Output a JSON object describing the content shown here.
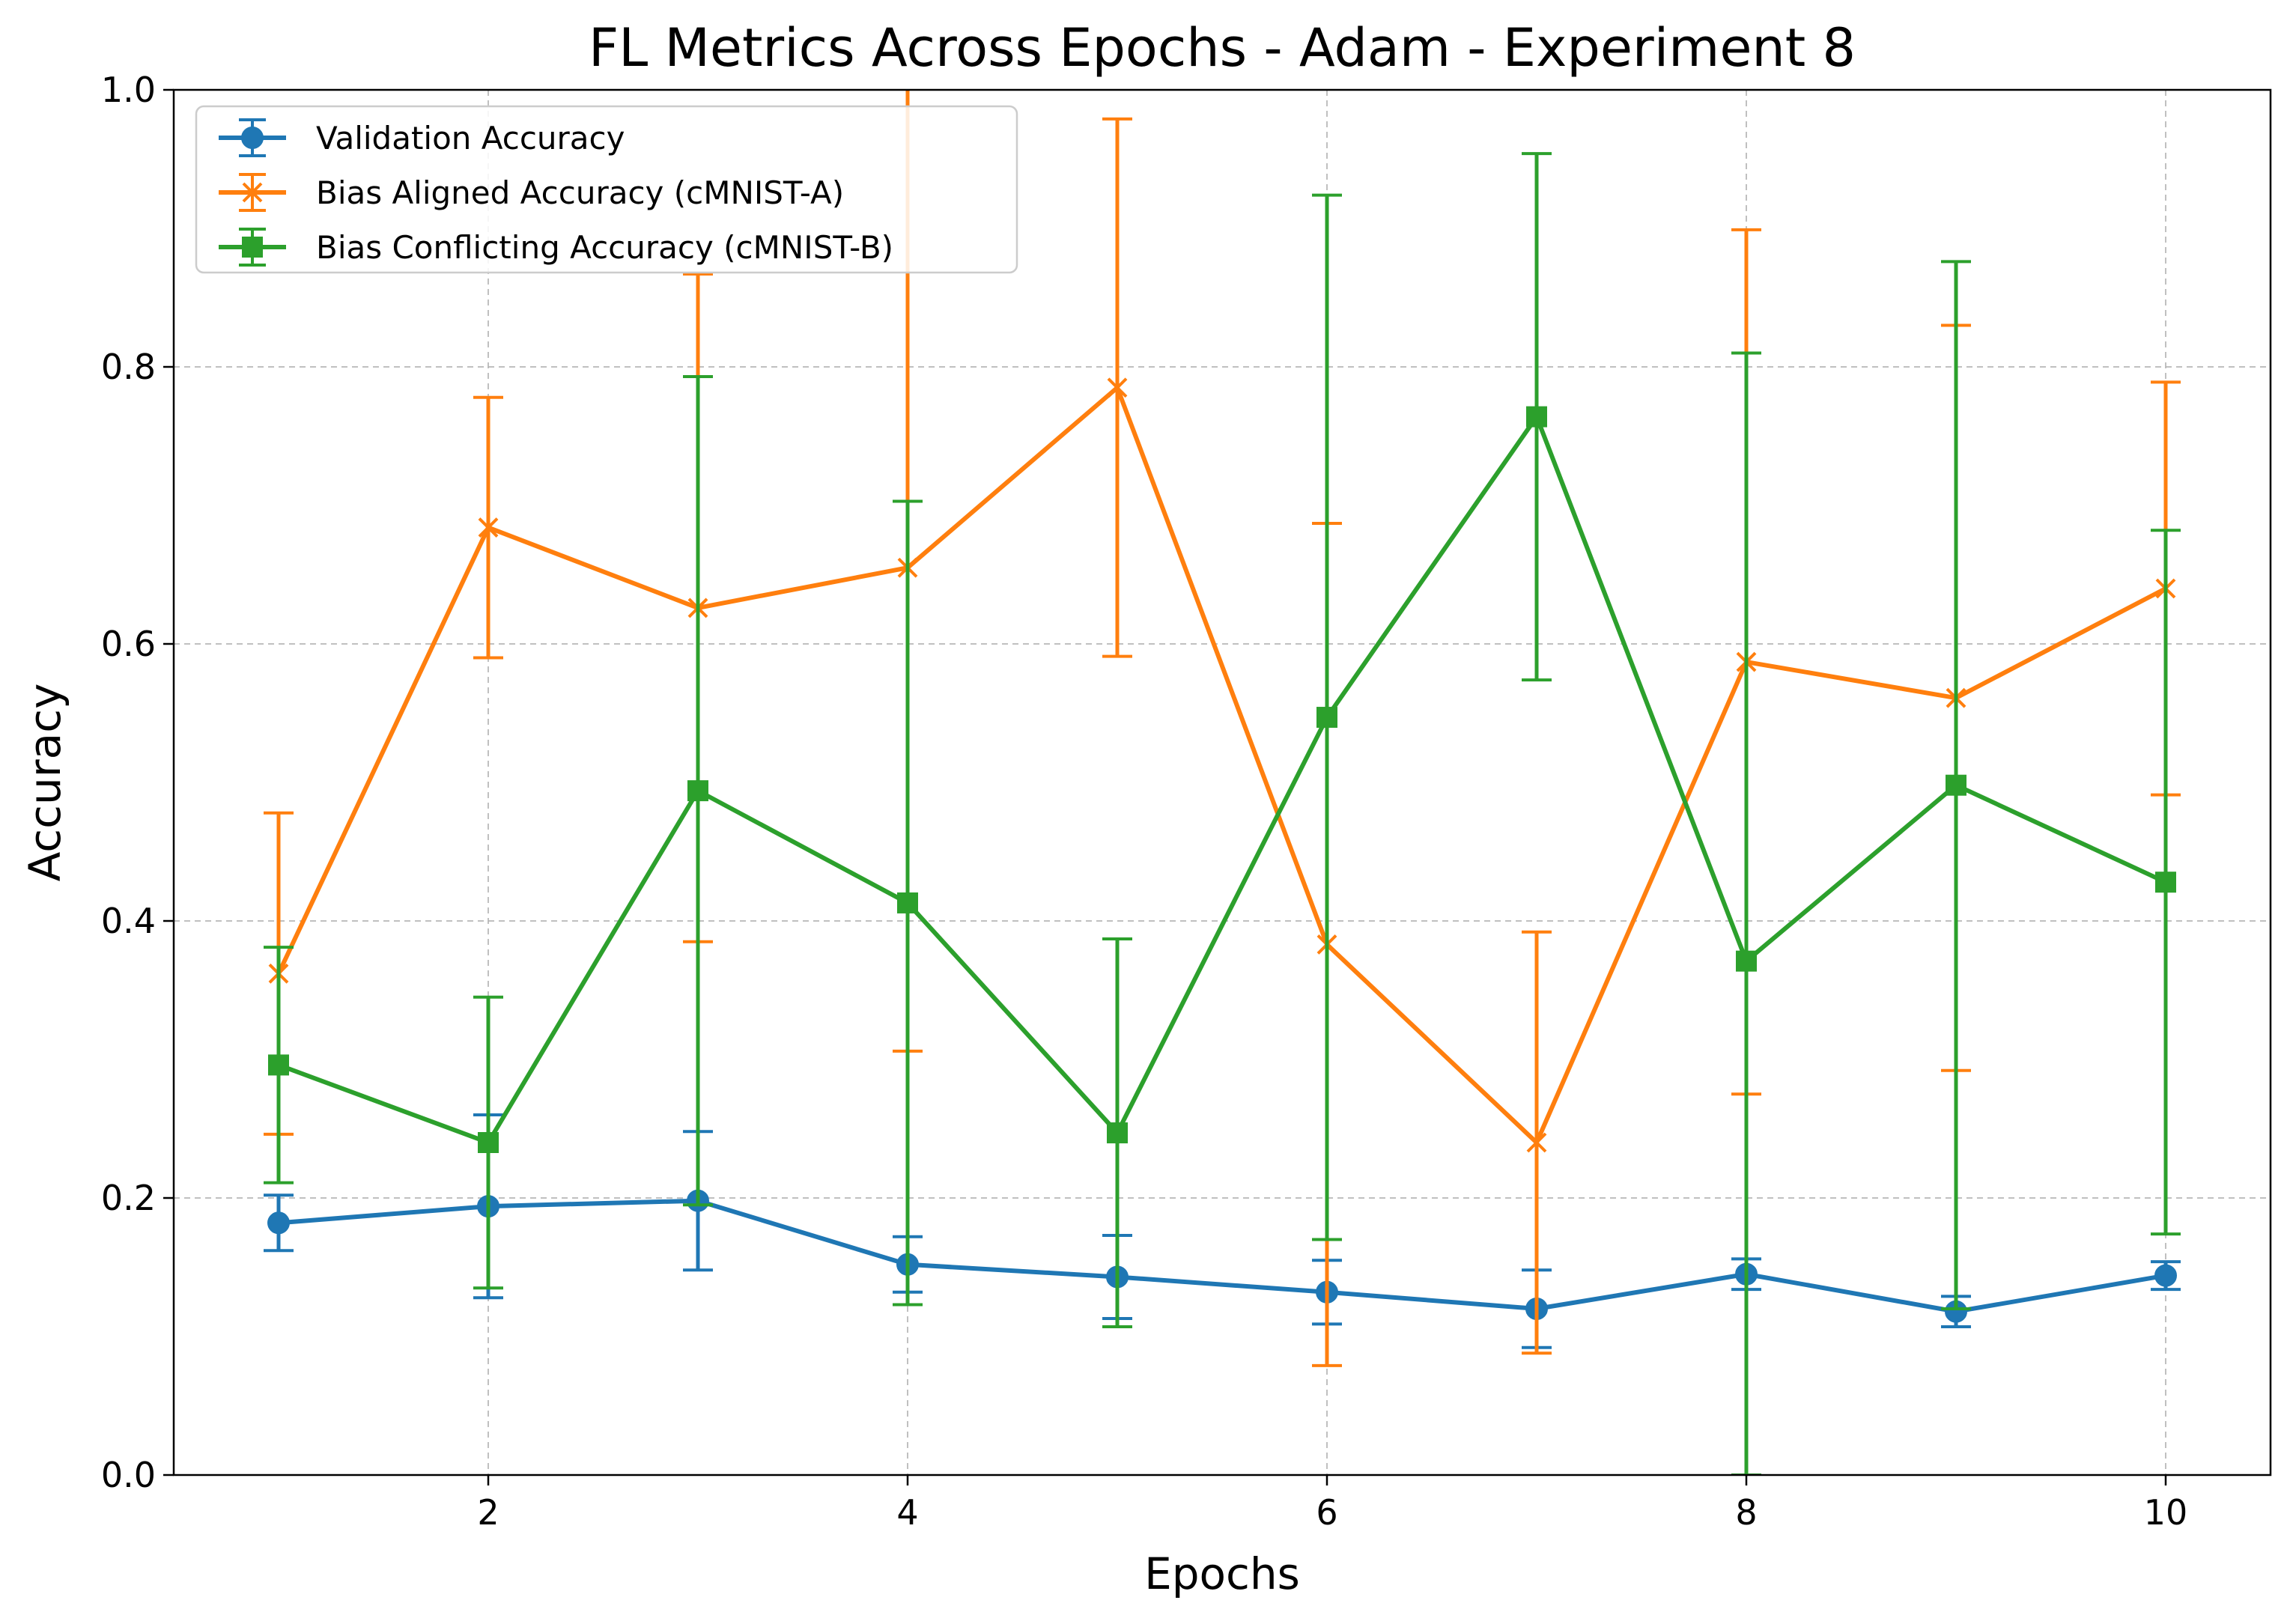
{
  "chart_data": {
    "type": "line",
    "title": "FL Metrics Across Epochs - Adam - Experiment 8",
    "xlabel": "Epochs",
    "ylabel": "Accuracy",
    "xlim": [
      0.5,
      10.5
    ],
    "ylim": [
      0.0,
      1.0
    ],
    "x": [
      1,
      2,
      3,
      4,
      5,
      6,
      7,
      8,
      9,
      10
    ],
    "x_ticks": [
      "2",
      "4",
      "6",
      "8",
      "10"
    ],
    "y_ticks": [
      "0.0",
      "0.2",
      "0.4",
      "0.6",
      "0.8",
      "1.0"
    ],
    "grid": true,
    "legend_position": "top-left",
    "series": [
      {
        "name": "Validation Accuracy",
        "color": "#1f77b4",
        "marker": "circle",
        "values": [
          0.182,
          0.194,
          0.198,
          0.152,
          0.143,
          0.132,
          0.12,
          0.145,
          0.118,
          0.144
        ],
        "error": [
          0.02,
          0.066,
          0.05,
          0.02,
          0.03,
          0.023,
          0.028,
          0.011,
          0.011,
          0.01
        ]
      },
      {
        "name": "Bias Aligned Accuracy (cMNIST-A)",
        "color": "#ff7f0e",
        "marker": "x",
        "values": [
          0.362,
          0.684,
          0.626,
          0.655,
          0.785,
          0.383,
          0.24,
          0.587,
          0.561,
          0.64
        ],
        "error": [
          0.116,
          0.094,
          0.241,
          0.349,
          0.194,
          0.304,
          0.152,
          0.312,
          0.269,
          0.149
        ]
      },
      {
        "name": "Bias Conflicting Accuracy (cMNIST-B)",
        "color": "#2ca02c",
        "marker": "square",
        "values": [
          0.296,
          0.24,
          0.494,
          0.413,
          0.247,
          0.547,
          0.764,
          0.371,
          0.498,
          0.428
        ],
        "error": [
          0.085,
          0.105,
          0.299,
          0.29,
          0.14,
          0.377,
          0.19,
          0.439,
          0.378,
          0.254
        ]
      }
    ]
  }
}
